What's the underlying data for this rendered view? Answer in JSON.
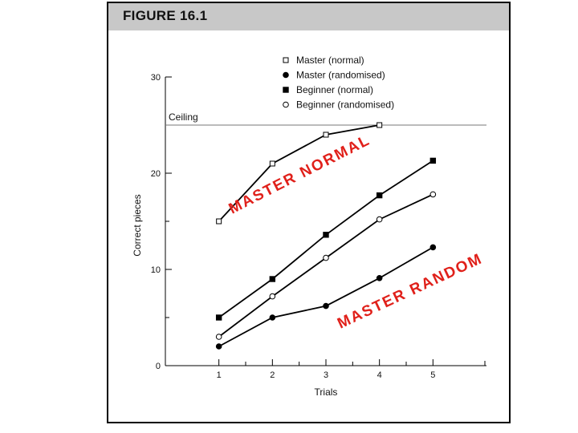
{
  "figure": {
    "title": "FIGURE 16.1"
  },
  "chart_data": {
    "type": "line",
    "xlabel": "Trials",
    "ylabel": "Correct pieces",
    "x": [
      1,
      2,
      3,
      4,
      5
    ],
    "xlim": [
      0,
      6
    ],
    "ylim": [
      0,
      30
    ],
    "x_ticks": [
      1,
      2,
      3,
      4,
      5
    ],
    "y_ticks": [
      0,
      10,
      20,
      30
    ],
    "grid": false,
    "legend_position": "top",
    "ceiling": {
      "label": "Ceiling",
      "value": 25
    },
    "series": [
      {
        "name": "Master (normal)",
        "marker": "open-square",
        "values": [
          15,
          21,
          24,
          25,
          null
        ]
      },
      {
        "name": "Master (randomised)",
        "marker": "filled-circle",
        "values": [
          2,
          5,
          6.2,
          9.1,
          12.3
        ]
      },
      {
        "name": "Beginner (normal)",
        "marker": "filled-square",
        "values": [
          5,
          9,
          13.6,
          17.7,
          21.3
        ]
      },
      {
        "name": "Beginner (randomised)",
        "marker": "open-circle",
        "values": [
          3,
          7.2,
          11.2,
          15.2,
          17.8
        ]
      }
    ],
    "annotations": [
      {
        "text": "MASTER NORMAL",
        "color": "#e0201a"
      },
      {
        "text": "MASTER RANDOM",
        "color": "#e0201a"
      }
    ]
  }
}
